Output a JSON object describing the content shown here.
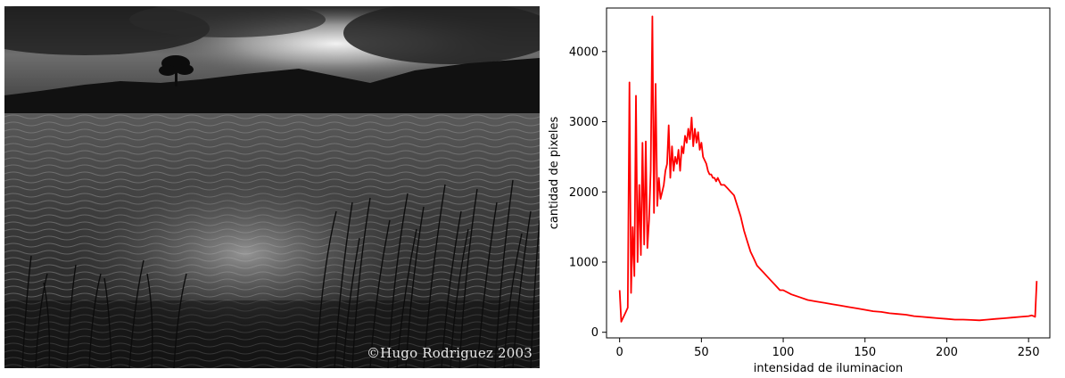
{
  "photo": {
    "credit": "©Hugo Rodriguez 2003"
  },
  "chart_data": {
    "type": "line",
    "xlabel": "intensidad de iluminacion",
    "ylabel": "cantidad de pixeles",
    "xlim": [
      -8,
      263
    ],
    "ylim": [
      -80,
      4620
    ],
    "xticks": [
      0,
      50,
      100,
      150,
      200,
      250
    ],
    "yticks": [
      0,
      1000,
      2000,
      3000,
      4000
    ],
    "grid": false,
    "line_color": "#ff0000",
    "series": [
      {
        "x": [
          0,
          1,
          2,
          3,
          4,
          5,
          6,
          7,
          8,
          9,
          10,
          11,
          12,
          13,
          14,
          15,
          16,
          17,
          18,
          19,
          20,
          21,
          22,
          23,
          24,
          25,
          26,
          27,
          28,
          29,
          30,
          31,
          32,
          33,
          34,
          35,
          36,
          37,
          38,
          39,
          40,
          41,
          42,
          43,
          44,
          45,
          46,
          47,
          48,
          49,
          50,
          51,
          52,
          53,
          54,
          55,
          56,
          57,
          58,
          59,
          60,
          62,
          64,
          66,
          68,
          70,
          72,
          74,
          76,
          78,
          80,
          82,
          84,
          86,
          88,
          90,
          92,
          94,
          96,
          98,
          100,
          105,
          110,
          115,
          120,
          125,
          130,
          135,
          140,
          145,
          150,
          155,
          160,
          165,
          170,
          175,
          180,
          185,
          190,
          195,
          200,
          205,
          210,
          215,
          220,
          225,
          230,
          235,
          240,
          245,
          250,
          252,
          253,
          254,
          255
        ],
        "y": [
          600,
          150,
          200,
          250,
          300,
          350,
          3560,
          560,
          1500,
          800,
          3370,
          1000,
          2100,
          1100,
          2700,
          1250,
          2720,
          1200,
          1600,
          2300,
          4500,
          1700,
          3540,
          1800,
          2200,
          1900,
          2000,
          2100,
          2300,
          2400,
          2950,
          2200,
          2650,
          2300,
          2500,
          2400,
          2600,
          2300,
          2650,
          2550,
          2800,
          2700,
          2900,
          2750,
          3060,
          2650,
          2900,
          2700,
          2850,
          2600,
          2700,
          2500,
          2450,
          2400,
          2300,
          2250,
          2250,
          2200,
          2200,
          2150,
          2200,
          2100,
          2100,
          2050,
          2000,
          1950,
          1800,
          1650,
          1450,
          1300,
          1150,
          1050,
          950,
          900,
          850,
          800,
          750,
          700,
          650,
          600,
          600,
          540,
          500,
          460,
          440,
          420,
          400,
          380,
          360,
          340,
          320,
          300,
          290,
          270,
          260,
          250,
          230,
          220,
          210,
          200,
          190,
          180,
          180,
          175,
          170,
          180,
          190,
          200,
          210,
          220,
          230,
          240,
          230,
          220,
          730
        ]
      }
    ]
  }
}
